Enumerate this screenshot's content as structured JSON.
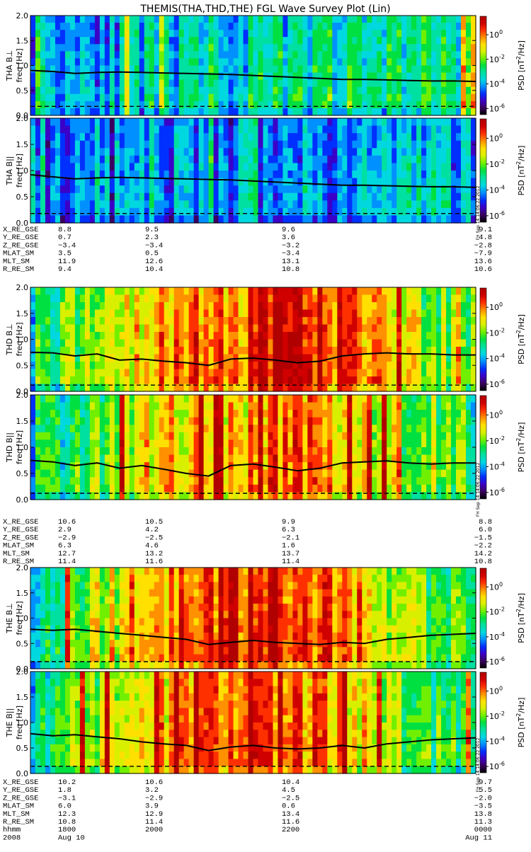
{
  "title": "THEMIS(THA,THD,THE) FGL Wave Survey Plot (Lin)",
  "stamp": "FH Sep 14 14:06:22 2012",
  "colorbar": {
    "label_main": "PSD [nT",
    "label_exp": "2",
    "label_tail": "/Hz]",
    "tick_base": "10",
    "ticks": [
      "0",
      "-2",
      "-4",
      "-6"
    ],
    "colors": [
      "#000000",
      "#3a0060",
      "#3b00c8",
      "#0030ff",
      "#0090ff",
      "#00d8e0",
      "#00e0a0",
      "#00e040",
      "#70f000",
      "#d8f000",
      "#ffe000",
      "#ff9000",
      "#ff3000",
      "#d00000",
      "#b00000"
    ]
  },
  "panels": [
    {
      "ylabel": "THA B⊥",
      "flabel": "freq [Hz]"
    },
    {
      "ylabel": "THA B||",
      "flabel": "freq [Hz]"
    },
    {
      "ylabel": "THD B⊥",
      "flabel": "freq [Hz]"
    },
    {
      "ylabel": "THD B||",
      "flabel": "freq [Hz]"
    },
    {
      "ylabel": "THE B⊥",
      "flabel": "freq [Hz]"
    },
    {
      "ylabel": "THE B||",
      "flabel": "freq [Hz]"
    }
  ],
  "yticks": [
    "0.0",
    "0.5",
    "1.0",
    "1.5",
    "2.0"
  ],
  "ephem": [
    {
      "rows": [
        {
          "label": "X_RE_GSE",
          "vals": [
            "8.8",
            "9.5",
            "9.6",
            "9.1"
          ]
        },
        {
          "label": "Y_RE_GSE",
          "vals": [
            "0.7",
            "2.3",
            "3.6",
            "4.8"
          ]
        },
        {
          "label": "Z_RE_GSE",
          "vals": [
            "−3.4",
            "−3.4",
            "−3.2",
            "−2.8"
          ]
        },
        {
          "label": "MLAT_SM",
          "vals": [
            "3.5",
            "0.5",
            "−3.4",
            "−7.9"
          ]
        },
        {
          "label": "MLT_SM",
          "vals": [
            "11.9",
            "12.6",
            "13.1",
            "13.6"
          ]
        },
        {
          "label": "R_RE_SM",
          "vals": [
            "9.4",
            "10.4",
            "10.8",
            "10.6"
          ]
        }
      ]
    },
    {
      "rows": [
        {
          "label": "X_RE_GSE",
          "vals": [
            "10.6",
            "10.5",
            "9.9",
            "8.8"
          ]
        },
        {
          "label": "Y_RE_GSE",
          "vals": [
            "2.9",
            "4.2",
            "6.3",
            "6.0"
          ]
        },
        {
          "label": "Z_RE_GSE",
          "vals": [
            "−2.9",
            "−2.5",
            "−2.1",
            "−1.5"
          ]
        },
        {
          "label": "MLAT_SM",
          "vals": [
            "6.3",
            "4.6",
            "1.6",
            "−2.2"
          ]
        },
        {
          "label": "MLT_SM",
          "vals": [
            "12.7",
            "13.2",
            "13.7",
            "14.2"
          ]
        },
        {
          "label": "R_RE_SM",
          "vals": [
            "11.4",
            "11.6",
            "11.4",
            "10.8"
          ]
        }
      ]
    },
    {
      "rows": [
        {
          "label": "X_RE_GSE",
          "vals": [
            "10.2",
            "10.6",
            "10.4",
            "9.7"
          ]
        },
        {
          "label": "Y_RE_GSE",
          "vals": [
            "1.8",
            "3.2",
            "4.5",
            "5.5"
          ]
        },
        {
          "label": "Z_RE_GSE",
          "vals": [
            "−3.1",
            "−2.9",
            "−2.5",
            "−2.0"
          ]
        },
        {
          "label": "MLAT_SM",
          "vals": [
            "6.0",
            "3.9",
            "0.6",
            "−3.5"
          ]
        },
        {
          "label": "MLT_SM",
          "vals": [
            "12.3",
            "12.9",
            "13.4",
            "13.8"
          ]
        },
        {
          "label": "R_RE_SM",
          "vals": [
            "10.8",
            "11.4",
            "11.6",
            "11.3"
          ]
        },
        {
          "label": "hhmm",
          "vals": [
            "1800",
            "2000",
            "2200",
            "0000"
          ]
        },
        {
          "label": "2008",
          "vals": [
            "Aug 10",
            "",
            "",
            "Aug 11"
          ]
        }
      ]
    }
  ],
  "chart_data": {
    "type": "heatmap",
    "title": "THEMIS(THA,THD,THE) FGL Wave Survey Plot (Lin)",
    "ylabel": "freq [Hz]",
    "ylim": [
      0,
      2
    ],
    "x_ticks": [
      "1800",
      "2000",
      "2200",
      "0000"
    ],
    "colorbar_range_exp": [
      -6,
      1
    ],
    "series": [
      {
        "name": "THA B⊥",
        "x": [
          0.0,
          0.05,
          0.1,
          0.15,
          0.2,
          0.25,
          0.3,
          0.35,
          0.4,
          0.45,
          0.5,
          0.55,
          0.6,
          0.65,
          0.7,
          0.75,
          0.8,
          0.85,
          0.9,
          0.95,
          1.0
        ],
        "values": [
          0.9,
          0.88,
          0.84,
          0.86,
          0.87,
          0.86,
          0.85,
          0.84,
          0.83,
          0.82,
          0.8,
          0.78,
          0.76,
          0.74,
          0.72,
          0.72,
          0.71,
          0.7,
          0.69,
          0.69,
          0.68
        ],
        "dashed": 0.18
      },
      {
        "name": "THA B||",
        "x": [
          0.0,
          0.05,
          0.1,
          0.15,
          0.2,
          0.25,
          0.3,
          0.35,
          0.4,
          0.45,
          0.5,
          0.55,
          0.6,
          0.65,
          0.7,
          0.75,
          0.8,
          0.85,
          0.9,
          0.95,
          1.0
        ],
        "values": [
          0.92,
          0.88,
          0.84,
          0.86,
          0.87,
          0.86,
          0.85,
          0.84,
          0.83,
          0.82,
          0.8,
          0.78,
          0.76,
          0.74,
          0.72,
          0.72,
          0.71,
          0.7,
          0.69,
          0.69,
          0.68
        ],
        "dashed": 0.18
      },
      {
        "name": "THD B⊥",
        "x": [
          0.0,
          0.05,
          0.1,
          0.15,
          0.2,
          0.25,
          0.3,
          0.35,
          0.4,
          0.45,
          0.5,
          0.55,
          0.6,
          0.65,
          0.7,
          0.75,
          0.8,
          0.85,
          0.9,
          0.95,
          1.0
        ],
        "values": [
          0.75,
          0.74,
          0.68,
          0.72,
          0.6,
          0.62,
          0.58,
          0.55,
          0.5,
          0.62,
          0.64,
          0.6,
          0.55,
          0.58,
          0.68,
          0.72,
          0.74,
          0.72,
          0.72,
          0.7,
          0.7
        ],
        "dashed": 0.12
      },
      {
        "name": "THD B||",
        "x": [
          0.0,
          0.05,
          0.1,
          0.15,
          0.2,
          0.25,
          0.3,
          0.35,
          0.4,
          0.45,
          0.5,
          0.55,
          0.6,
          0.65,
          0.7,
          0.75,
          0.8,
          0.85,
          0.9,
          0.95,
          1.0
        ],
        "values": [
          0.75,
          0.72,
          0.65,
          0.7,
          0.6,
          0.65,
          0.58,
          0.5,
          0.45,
          0.65,
          0.68,
          0.62,
          0.55,
          0.6,
          0.7,
          0.72,
          0.74,
          0.7,
          0.68,
          0.7,
          0.7
        ],
        "dashed": 0.12
      },
      {
        "name": "THE B⊥",
        "x": [
          0.0,
          0.05,
          0.1,
          0.15,
          0.2,
          0.25,
          0.3,
          0.35,
          0.4,
          0.45,
          0.5,
          0.55,
          0.6,
          0.65,
          0.7,
          0.75,
          0.8,
          0.85,
          0.9,
          0.95,
          1.0
        ],
        "values": [
          0.78,
          0.76,
          0.78,
          0.74,
          0.7,
          0.66,
          0.62,
          0.58,
          0.48,
          0.52,
          0.56,
          0.52,
          0.5,
          0.48,
          0.52,
          0.5,
          0.58,
          0.62,
          0.66,
          0.68,
          0.7
        ],
        "dashed": 0.14
      },
      {
        "name": "THE B||",
        "x": [
          0.0,
          0.05,
          0.1,
          0.15,
          0.2,
          0.25,
          0.3,
          0.35,
          0.4,
          0.45,
          0.5,
          0.55,
          0.6,
          0.65,
          0.7,
          0.75,
          0.8,
          0.85,
          0.9,
          0.95,
          1.0
        ],
        "values": [
          0.78,
          0.74,
          0.76,
          0.72,
          0.68,
          0.62,
          0.58,
          0.55,
          0.45,
          0.52,
          0.55,
          0.5,
          0.48,
          0.5,
          0.55,
          0.5,
          0.58,
          0.62,
          0.66,
          0.68,
          0.7
        ],
        "dashed": 0.14
      }
    ]
  }
}
